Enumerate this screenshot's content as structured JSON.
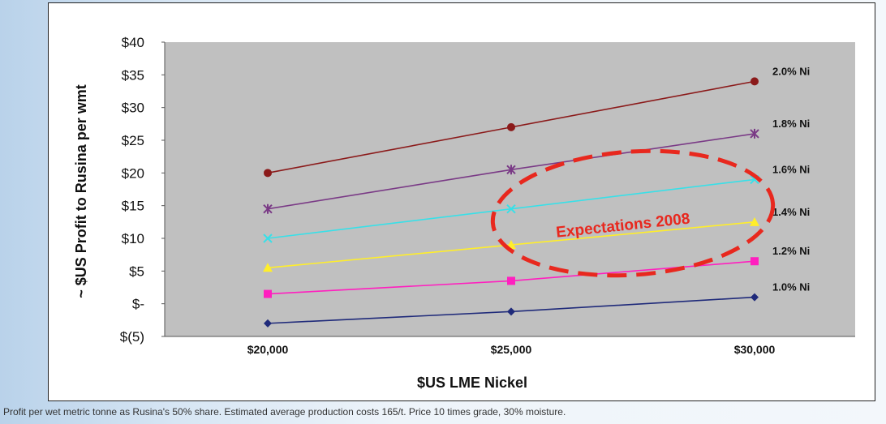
{
  "chart_data": {
    "type": "line",
    "categories": [
      "$20,000",
      "$25,000",
      "$30,000"
    ],
    "ylabel": "~ $US Profit to Rusina per wmt",
    "xlabel": "$US LME Nickel",
    "ylim": [
      -5,
      40
    ],
    "yticks": [
      -5,
      0,
      5,
      10,
      15,
      20,
      25,
      30,
      35,
      40
    ],
    "ytick_labels": [
      "$(5)",
      "$-",
      "$5",
      "$10",
      "$15",
      "$20",
      "$25",
      "$30",
      "$35",
      "$40"
    ],
    "grid": false,
    "series": [
      {
        "name": "1.0% Ni",
        "values": [
          -3,
          -1.2,
          1
        ],
        "color": "#1f2a7a",
        "marker": "diamond"
      },
      {
        "name": "1.2% Ni",
        "values": [
          1.5,
          3.5,
          6.5
        ],
        "color": "#ff1fbf",
        "marker": "square"
      },
      {
        "name": "1.4% Ni",
        "values": [
          5.5,
          9,
          12.5
        ],
        "color": "#ffee2a",
        "marker": "triangle"
      },
      {
        "name": "1.6% Ni",
        "values": [
          10,
          14.5,
          19
        ],
        "color": "#38e0e8",
        "marker": "x"
      },
      {
        "name": "1.8% Ni",
        "values": [
          14.5,
          20.5,
          26
        ],
        "color": "#7a3a86",
        "marker": "star"
      },
      {
        "name": "2.0% Ni",
        "values": [
          20,
          27,
          34
        ],
        "color": "#8b1a1a",
        "marker": "circle"
      }
    ],
    "annotation": {
      "text": "Expectations 2008",
      "color": "#e8281e"
    }
  },
  "footnote": "Profit per wet metric tonne as Rusina's 50% share. Estimated average production costs 165/t. Price 10 times grade, 30% moisture."
}
